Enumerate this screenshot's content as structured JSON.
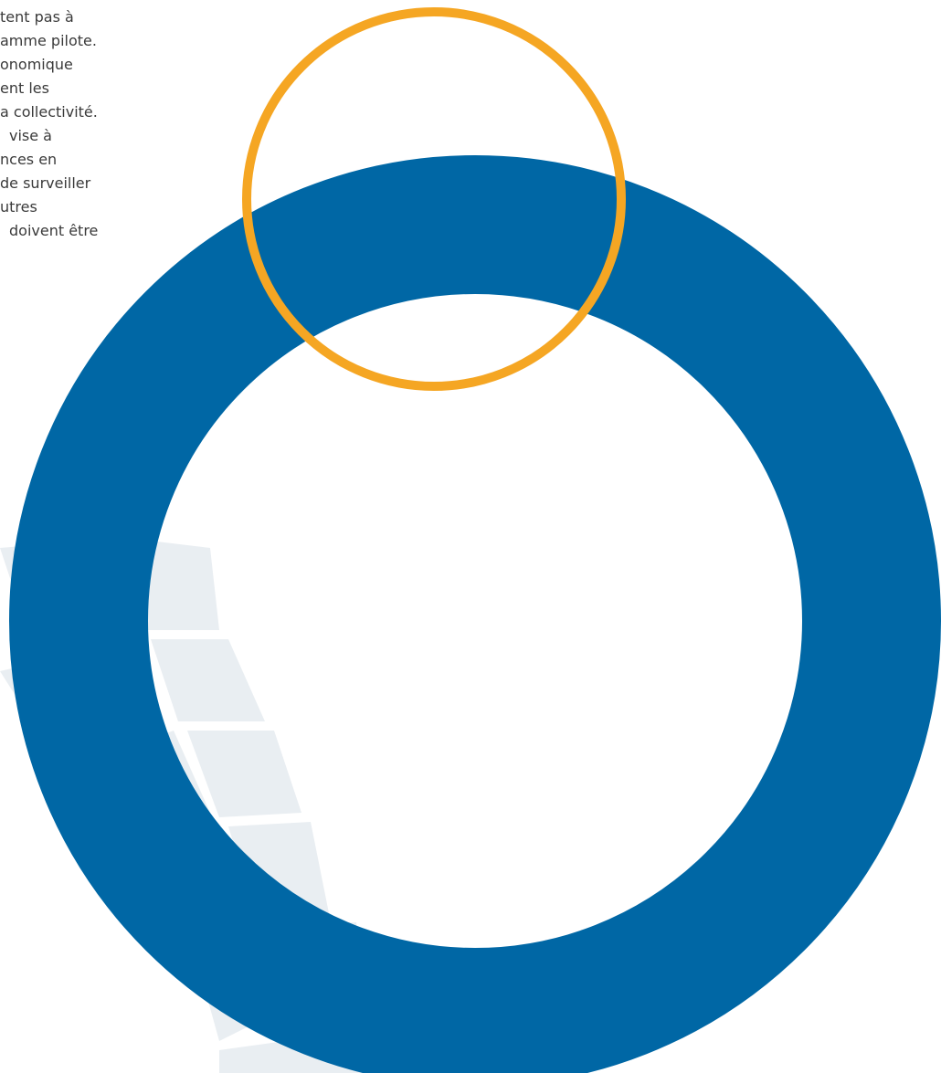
{
  "text": {
    "lines": [
      "tent pas à",
      "amme pilote.",
      "onomique",
      "ent les",
      "a collectivité.",
      "vise à",
      "nces en",
      "de surveiller",
      "utres",
      "doivent être"
    ]
  }
}
